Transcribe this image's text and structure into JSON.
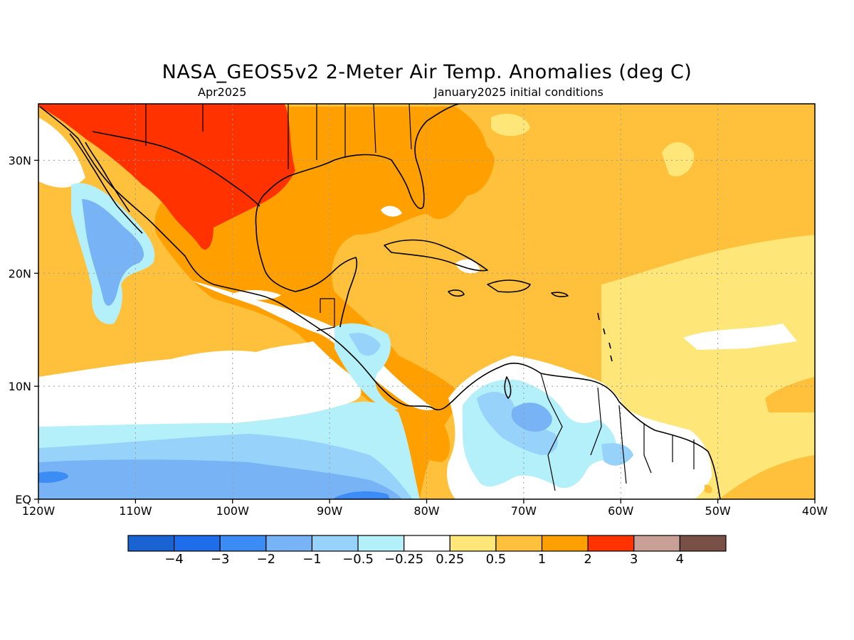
{
  "title": "NASA_GEOS5v2 2-Meter Air Temp. Anomalies (deg C)",
  "subtitle_left": "Apr2025",
  "subtitle_right": "January2025 initial conditions",
  "map": {
    "lon_range": [
      -120,
      -40
    ],
    "lat_range": [
      0,
      35
    ],
    "lon_ticks": [
      {
        "value": -120,
        "label": "120W"
      },
      {
        "value": -110,
        "label": "110W"
      },
      {
        "value": -100,
        "label": "100W"
      },
      {
        "value": -90,
        "label": "90W"
      },
      {
        "value": -80,
        "label": "80W"
      },
      {
        "value": -70,
        "label": "70W"
      },
      {
        "value": -60,
        "label": "60W"
      },
      {
        "value": -50,
        "label": "50W"
      },
      {
        "value": -40,
        "label": "40W"
      }
    ],
    "lat_ticks": [
      {
        "value": 0,
        "label": "EQ"
      },
      {
        "value": 10,
        "label": "10N"
      },
      {
        "value": 20,
        "label": "20N"
      },
      {
        "value": 30,
        "label": "30N"
      }
    ],
    "gridlines": "dotted",
    "ocean_background_color": "#ffc03c",
    "coastline_color": "#000000"
  },
  "colorbar": {
    "bins": [
      {
        "color": "#1964d2"
      },
      {
        "color": "#1e6eeb"
      },
      {
        "color": "#3c8cf5"
      },
      {
        "color": "#78b4f5"
      },
      {
        "color": "#96d2fa"
      },
      {
        "color": "#b4f0fa"
      },
      {
        "color": "#ffffff"
      },
      {
        "color": "#ffe678"
      },
      {
        "color": "#ffc03c"
      },
      {
        "color": "#ffa000"
      },
      {
        "color": "#ff3200"
      },
      {
        "color": "#c8a096"
      },
      {
        "color": "#785046"
      }
    ],
    "labels": [
      "−4",
      "−3",
      "−2",
      "−1",
      "−0.5",
      "−0.25",
      "0.25",
      "0.5",
      "1",
      "2",
      "3",
      "4"
    ]
  }
}
